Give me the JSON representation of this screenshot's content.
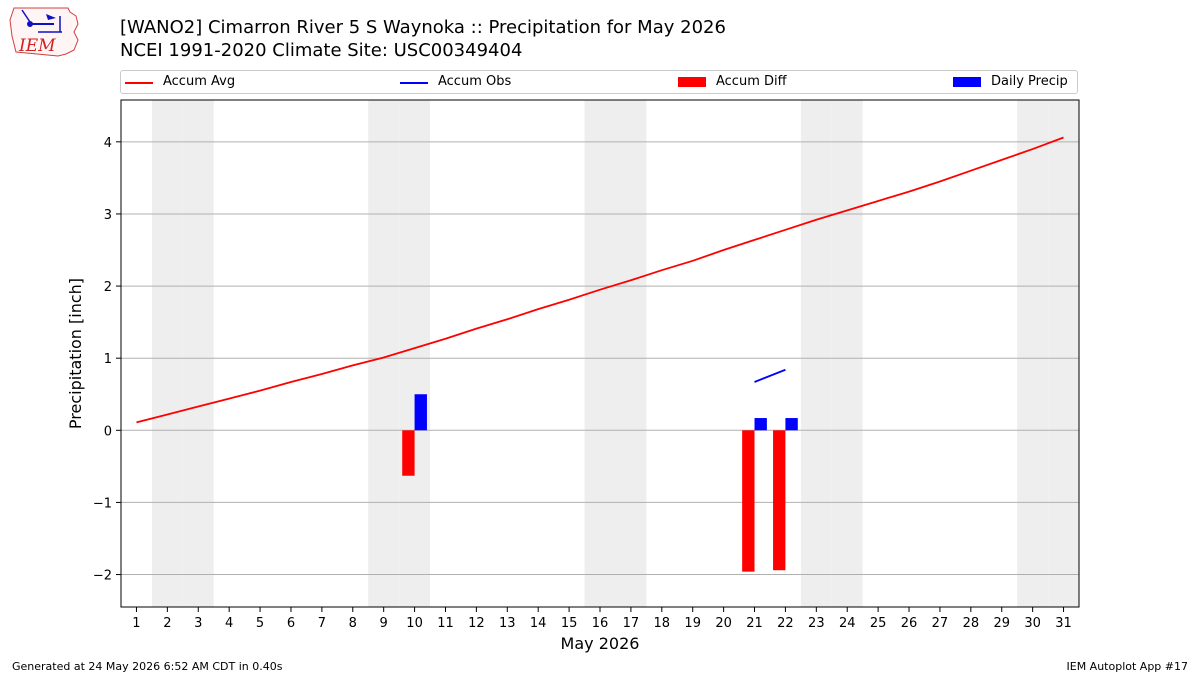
{
  "header": {
    "title_line1": "[WANO2] Cimarron River 5 S Waynoka :: Precipitation for May 2026",
    "title_line2": "NCEI 1991-2020 Climate Site: USC00349404",
    "logo_text": "IEM"
  },
  "footer": {
    "generated": "Generated at 24 May 2026 6:52 AM CDT in 0.40s",
    "app": "IEM Autoplot App #17"
  },
  "colors": {
    "avg": "#ff0000",
    "obs": "#0000ff",
    "diff": "#ff0000",
    "daily": "#0000ff",
    "weekend_band": "#eeeeee",
    "grid": "#b0b0b0"
  },
  "chart_data": {
    "type": "bar",
    "xlabel": "May 2026",
    "ylabel": "Precipitation [inch]",
    "xlim": [
      0.5,
      31.5
    ],
    "ylim": [
      -2.45,
      4.58
    ],
    "yticks": [
      -2,
      -1,
      0,
      1,
      2,
      3,
      4
    ],
    "ytick_labels": [
      "−2",
      "−1",
      "0",
      "1",
      "2",
      "3",
      "4"
    ],
    "x_ticks": [
      1,
      2,
      3,
      4,
      5,
      6,
      7,
      8,
      9,
      10,
      11,
      12,
      13,
      14,
      15,
      16,
      17,
      18,
      19,
      20,
      21,
      22,
      23,
      24,
      25,
      26,
      27,
      28,
      29,
      30,
      31
    ],
    "grid": "y",
    "legend_placement": "top",
    "weekend_days": [
      2,
      3,
      9,
      10,
      16,
      17,
      23,
      24,
      30,
      31
    ],
    "series": [
      {
        "name": "Accum Avg",
        "kind": "line",
        "x": [
          1,
          2,
          3,
          4,
          5,
          6,
          7,
          8,
          9,
          10,
          11,
          12,
          13,
          14,
          15,
          16,
          17,
          18,
          19,
          20,
          21,
          22,
          23,
          24,
          25,
          26,
          27,
          28,
          29,
          30,
          31
        ],
        "values": [
          0.11,
          0.22,
          0.33,
          0.44,
          0.55,
          0.67,
          0.78,
          0.9,
          1.01,
          1.14,
          1.27,
          1.41,
          1.54,
          1.68,
          1.81,
          1.95,
          2.08,
          2.22,
          2.35,
          2.5,
          2.64,
          2.78,
          2.92,
          3.05,
          3.18,
          3.31,
          3.45,
          3.6,
          3.75,
          3.9,
          4.06
        ]
      },
      {
        "name": "Accum Obs",
        "kind": "line",
        "x": [
          21,
          22
        ],
        "values": [
          0.67,
          0.84
        ]
      },
      {
        "name": "Accum Diff",
        "kind": "bar",
        "offset": -0.2,
        "x": [
          10,
          21,
          22
        ],
        "values": [
          -0.63,
          -1.96,
          -1.94
        ]
      },
      {
        "name": "Daily Precip",
        "kind": "bar",
        "offset": 0.2,
        "x": [
          10,
          21,
          22
        ],
        "values": [
          0.5,
          0.17,
          0.17
        ]
      }
    ]
  }
}
